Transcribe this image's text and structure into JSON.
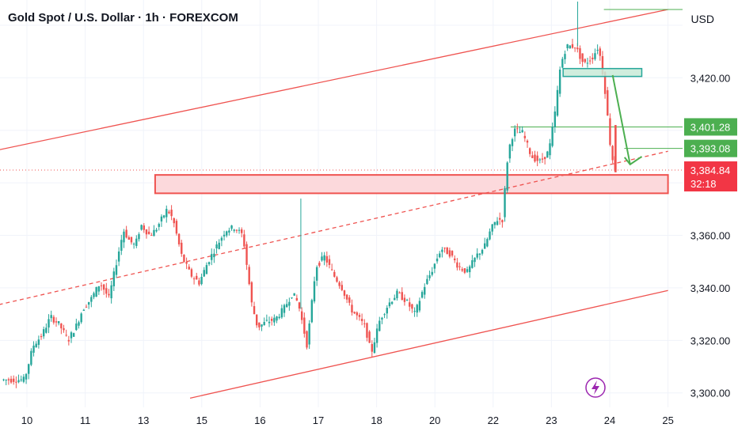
{
  "header": {
    "title": "Gold Spot / U.S. Dollar · 1h · FOREXCOM",
    "currency": "USD"
  },
  "colors": {
    "up": "#26a69a",
    "down": "#ef5350",
    "channel": "#ef5350",
    "zone_fill": "#fcd9dc",
    "zone_border": "#ef5350",
    "resistance_fill": "#c8ead7",
    "resistance_border": "#26a69a",
    "target_line": "#4caf50",
    "arrow": "#4caf50",
    "badge_green": "#4caf50",
    "badge_red": "#f23645",
    "event_icon": "#9c27b0"
  },
  "chart_data": {
    "type": "candlestick",
    "x_unit": "trading days (hourly candles)",
    "y_label": "Price (USD)",
    "ylim": [
      3296,
      3449
    ],
    "x_ticks": [
      "10",
      "11",
      "13",
      "15",
      "16",
      "17",
      "18",
      "20",
      "22",
      "23",
      "24",
      "25"
    ],
    "y_ticks": [
      "3,300.00",
      "3,320.00",
      "3,340.00",
      "3,360.00",
      "3,420.00"
    ],
    "price_labels": [
      {
        "label": "3,401.28",
        "value": 3401.28,
        "style": "green"
      },
      {
        "label": "3,393.08",
        "value": 3393.08,
        "style": "green"
      },
      {
        "label": "3,384.84",
        "value": 3384.84,
        "style": "red",
        "sub": "32:18"
      }
    ],
    "path_points": [
      [
        0,
        3305
      ],
      [
        0.15,
        3318
      ],
      [
        0.3,
        3322
      ],
      [
        0.45,
        3329
      ],
      [
        0.6,
        3326
      ],
      [
        0.75,
        3320
      ],
      [
        0.9,
        3326
      ],
      [
        1.0,
        3332
      ],
      [
        1.15,
        3336
      ],
      [
        1.3,
        3342
      ],
      [
        1.45,
        3336
      ],
      [
        1.6,
        3352
      ],
      [
        1.7,
        3362
      ],
      [
        1.8,
        3358
      ],
      [
        1.9,
        3356
      ],
      [
        2.0,
        3364
      ],
      [
        2.15,
        3360
      ],
      [
        2.25,
        3362
      ],
      [
        2.35,
        3366
      ],
      [
        2.45,
        3370
      ],
      [
        2.55,
        3366
      ],
      [
        2.7,
        3352
      ],
      [
        2.85,
        3345
      ],
      [
        3.0,
        3342
      ],
      [
        3.15,
        3350
      ],
      [
        3.3,
        3356
      ],
      [
        3.45,
        3362
      ],
      [
        3.6,
        3363
      ],
      [
        3.75,
        3360
      ],
      [
        3.9,
        3334
      ],
      [
        4.0,
        3325
      ],
      [
        4.15,
        3327
      ],
      [
        4.3,
        3328
      ],
      [
        4.45,
        3332
      ],
      [
        4.6,
        3338
      ],
      [
        4.7,
        3334
      ],
      [
        4.85,
        3318
      ],
      [
        5.0,
        3348
      ],
      [
        5.15,
        3352
      ],
      [
        5.3,
        3345
      ],
      [
        5.45,
        3340
      ],
      [
        5.6,
        3332
      ],
      [
        5.75,
        3328
      ],
      [
        5.85,
        3325
      ],
      [
        5.95,
        3315
      ],
      [
        6.1,
        3328
      ],
      [
        6.25,
        3334
      ],
      [
        6.4,
        3338
      ],
      [
        6.55,
        3335
      ],
      [
        6.7,
        3330
      ],
      [
        6.85,
        3340
      ],
      [
        7.0,
        3347
      ],
      [
        7.15,
        3355
      ],
      [
        7.3,
        3353
      ],
      [
        7.45,
        3348
      ],
      [
        7.6,
        3346
      ],
      [
        7.75,
        3352
      ],
      [
        7.9,
        3356
      ],
      [
        8.0,
        3362
      ],
      [
        8.1,
        3366
      ],
      [
        8.2,
        3366
      ],
      [
        8.3,
        3392
      ],
      [
        8.4,
        3400
      ],
      [
        8.55,
        3399
      ],
      [
        8.7,
        3390
      ],
      [
        8.85,
        3388
      ],
      [
        9.0,
        3392
      ],
      [
        9.1,
        3406
      ],
      [
        9.2,
        3425
      ],
      [
        9.3,
        3432
      ],
      [
        9.45,
        3432
      ],
      [
        9.6,
        3425
      ],
      [
        9.75,
        3428
      ],
      [
        9.85,
        3432
      ],
      [
        9.95,
        3418
      ],
      [
        10.05,
        3395
      ],
      [
        10.12,
        3385
      ]
    ],
    "annotations": {
      "upper_channel": {
        "from": [
          -0.6,
          3392
        ],
        "to": [
          11.0,
          3446
        ]
      },
      "mid_channel_dashed": {
        "from": [
          -0.6,
          3333
        ],
        "to": [
          11.0,
          3392
        ]
      },
      "lower_channel": {
        "from": [
          2.8,
          3298
        ],
        "to": [
          11.0,
          3339
        ]
      },
      "support_zone": {
        "x_from": 2.2,
        "x_to": 11.0,
        "y_from": 3376,
        "y_to": 3383
      },
      "resistance_box": {
        "x_from": 9.2,
        "x_to": 10.55,
        "y_from": 3420.5,
        "y_to": 3423.5
      },
      "resistance_topline": {
        "x_from": 9.9,
        "x_to": 11.0,
        "value": 3446
      },
      "target_line_1": {
        "x_from": 8.3,
        "x_to": 11.0,
        "value": 3401.28
      },
      "target_line_2": {
        "x_from": 10.25,
        "x_to": 11.0,
        "value": 3393.08
      },
      "current_price_dotted": {
        "value": 3384.84
      },
      "arrow": {
        "from": [
          10.05,
          3421
        ],
        "via": [
          10.35,
          3387
        ],
        "tail": [
          10.55,
          3390
        ]
      }
    }
  }
}
